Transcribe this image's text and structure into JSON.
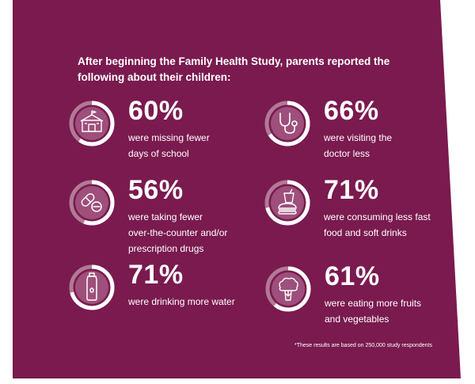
{
  "intro": "After beginning the Family Health Study, parents reported the following about their children:",
  "colors": {
    "background": "#7a1a4f",
    "ring_track": "#b07a96",
    "ring_fill": "#ffffff",
    "icon_disc": "#9e4f7b"
  },
  "stats": [
    {
      "percent": "60%",
      "value": 0.6,
      "icon": "school-icon",
      "line1": "were missing fewer",
      "line2": "days of school",
      "line3": ""
    },
    {
      "percent": "66%",
      "value": 0.66,
      "icon": "stethoscope-icon",
      "line1": "were visiting the",
      "line2": "doctor less",
      "line3": ""
    },
    {
      "percent": "56%",
      "value": 0.56,
      "icon": "pills-icon",
      "line1": "were taking fewer",
      "line2": "over-the-counter and/or",
      "line3": "prescription drugs"
    },
    {
      "percent": "71%",
      "value": 0.71,
      "icon": "fast-food-icon",
      "line1": "were consuming less fast",
      "line2": "food and soft drinks",
      "line3": ""
    },
    {
      "percent": "71%",
      "value": 0.71,
      "icon": "water-bottle-icon",
      "line1": "were drinking more water",
      "line2": "",
      "line3": ""
    },
    {
      "percent": "61%",
      "value": 0.61,
      "icon": "broccoli-icon",
      "line1": "were eating more fruits",
      "line2": "and vegetables",
      "line3": ""
    }
  ],
  "footnote": "*These results are based on 250,000 study respondents"
}
